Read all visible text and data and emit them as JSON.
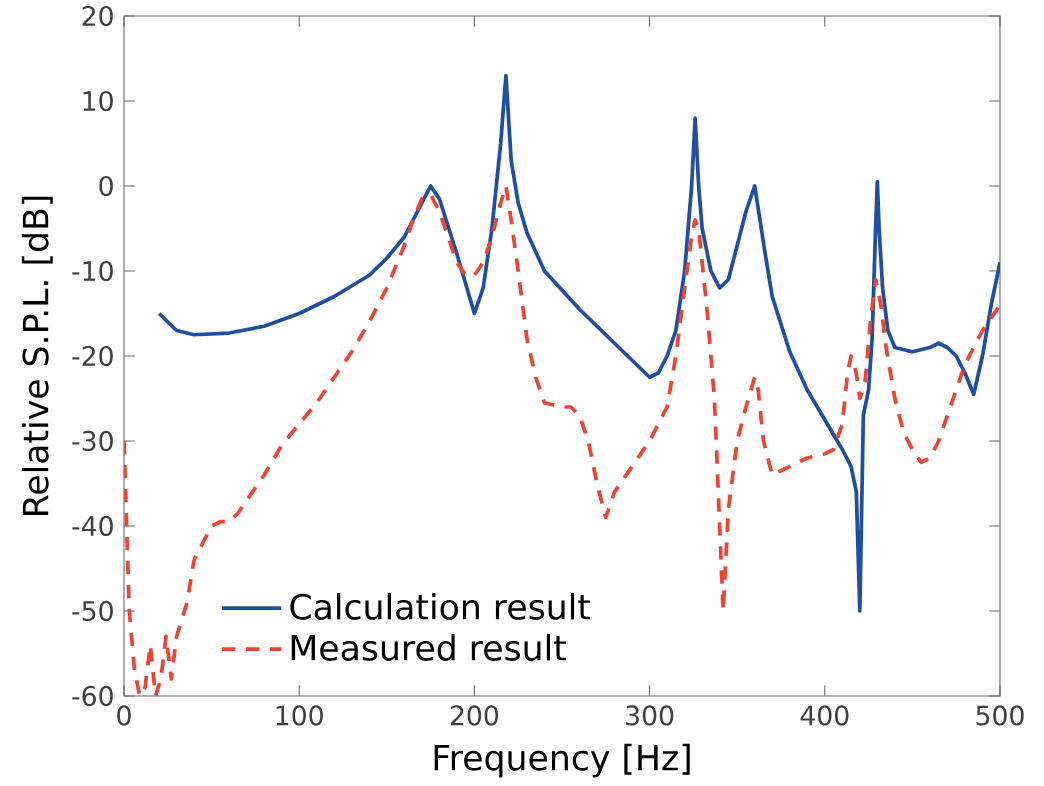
{
  "chart_data": {
    "type": "line",
    "xlabel": "Frequency [Hz]",
    "ylabel": "Relative S.P.L. [dB]",
    "xlim": [
      0,
      500
    ],
    "ylim": [
      -60,
      20
    ],
    "xticks": [
      0,
      100,
      200,
      300,
      400,
      500
    ],
    "yticks": [
      -60,
      -50,
      -40,
      -30,
      -20,
      -10,
      0,
      10,
      20
    ],
    "legend": "bottom left",
    "grid": false,
    "series": [
      {
        "name": "Calculation result",
        "color": "#1f4fa3",
        "line_style": "solid",
        "x": [
          20,
          30,
          40,
          60,
          80,
          100,
          120,
          140,
          150,
          160,
          170,
          175,
          180,
          190,
          200,
          205,
          210,
          215,
          218,
          221,
          225,
          230,
          240,
          260,
          280,
          300,
          305,
          310,
          315,
          320,
          324,
          326,
          328,
          330,
          335,
          340,
          345,
          350,
          355,
          360,
          363,
          366,
          370,
          380,
          390,
          400,
          410,
          415,
          418,
          420,
          422,
          425,
          427,
          429,
          430,
          431,
          433,
          436,
          440,
          450,
          460,
          465,
          470,
          475,
          480,
          485,
          490,
          495,
          500
        ],
        "values": [
          -15,
          -17,
          -17.5,
          -17.3,
          -16.5,
          -15,
          -13,
          -10.5,
          -8.5,
          -6,
          -2,
          0,
          -1.5,
          -8,
          -15,
          -12,
          -5,
          5,
          13,
          3,
          -2,
          -5.5,
          -10,
          -14.5,
          -18.5,
          -22.5,
          -22,
          -20,
          -17,
          -10,
          0,
          8,
          0,
          -5,
          -10,
          -12,
          -11,
          -7,
          -3,
          0,
          -4,
          -8,
          -13,
          -19.5,
          -24,
          -27.5,
          -31,
          -33,
          -36,
          -50,
          -27,
          -24,
          -18,
          -5,
          0.5,
          -5,
          -12,
          -17,
          -19,
          -19.5,
          -19,
          -18.5,
          -19,
          -20,
          -22,
          -24.5,
          -20,
          -14,
          -9
        ]
      },
      {
        "name": "Measured result",
        "color": "#ee4433",
        "line_style": "dashed",
        "x": [
          0,
          3,
          6,
          9,
          12,
          15,
          18,
          21,
          24,
          27,
          30,
          33,
          36,
          40,
          45,
          50,
          55,
          60,
          65,
          70,
          80,
          90,
          100,
          110,
          120,
          130,
          140,
          150,
          160,
          165,
          170,
          175,
          180,
          185,
          190,
          195,
          200,
          205,
          210,
          215,
          218,
          221,
          225,
          230,
          235,
          240,
          250,
          255,
          260,
          265,
          270,
          275,
          280,
          290,
          300,
          310,
          315,
          320,
          324,
          326,
          328,
          330,
          333,
          337,
          340,
          342,
          345,
          350,
          355,
          360,
          362,
          365,
          370,
          380,
          390,
          400,
          405,
          410,
          413,
          415,
          418,
          420,
          423,
          426,
          429,
          432,
          435,
          440,
          445,
          450,
          455,
          460,
          465,
          470,
          475,
          480,
          490,
          500
        ],
        "values": [
          -30,
          -50,
          -57,
          -60,
          -59,
          -54,
          -60,
          -58,
          -53,
          -58,
          -53,
          -51,
          -49,
          -44,
          -42,
          -40,
          -39.5,
          -39.5,
          -38.5,
          -37,
          -34,
          -30.5,
          -28,
          -25.5,
          -22.5,
          -19.5,
          -16,
          -12,
          -7,
          -4,
          -1.5,
          -1,
          -3,
          -6,
          -9,
          -10.5,
          -10.5,
          -9,
          -6,
          -2,
          0,
          -4,
          -10,
          -18,
          -22.5,
          -25.5,
          -26,
          -26,
          -27,
          -30,
          -35,
          -39,
          -36,
          -33,
          -30,
          -26,
          -20,
          -12,
          -6,
          -4,
          -5,
          -9,
          -15,
          -25,
          -40,
          -50,
          -38,
          -30,
          -26,
          -22.5,
          -24,
          -30,
          -34,
          -33,
          -32,
          -31.5,
          -31,
          -28,
          -22,
          -20,
          -22,
          -25,
          -23,
          -16,
          -11,
          -14,
          -19,
          -25,
          -29,
          -31,
          -32.5,
          -32,
          -30,
          -27,
          -24,
          -21,
          -17,
          -14
        ]
      }
    ]
  }
}
